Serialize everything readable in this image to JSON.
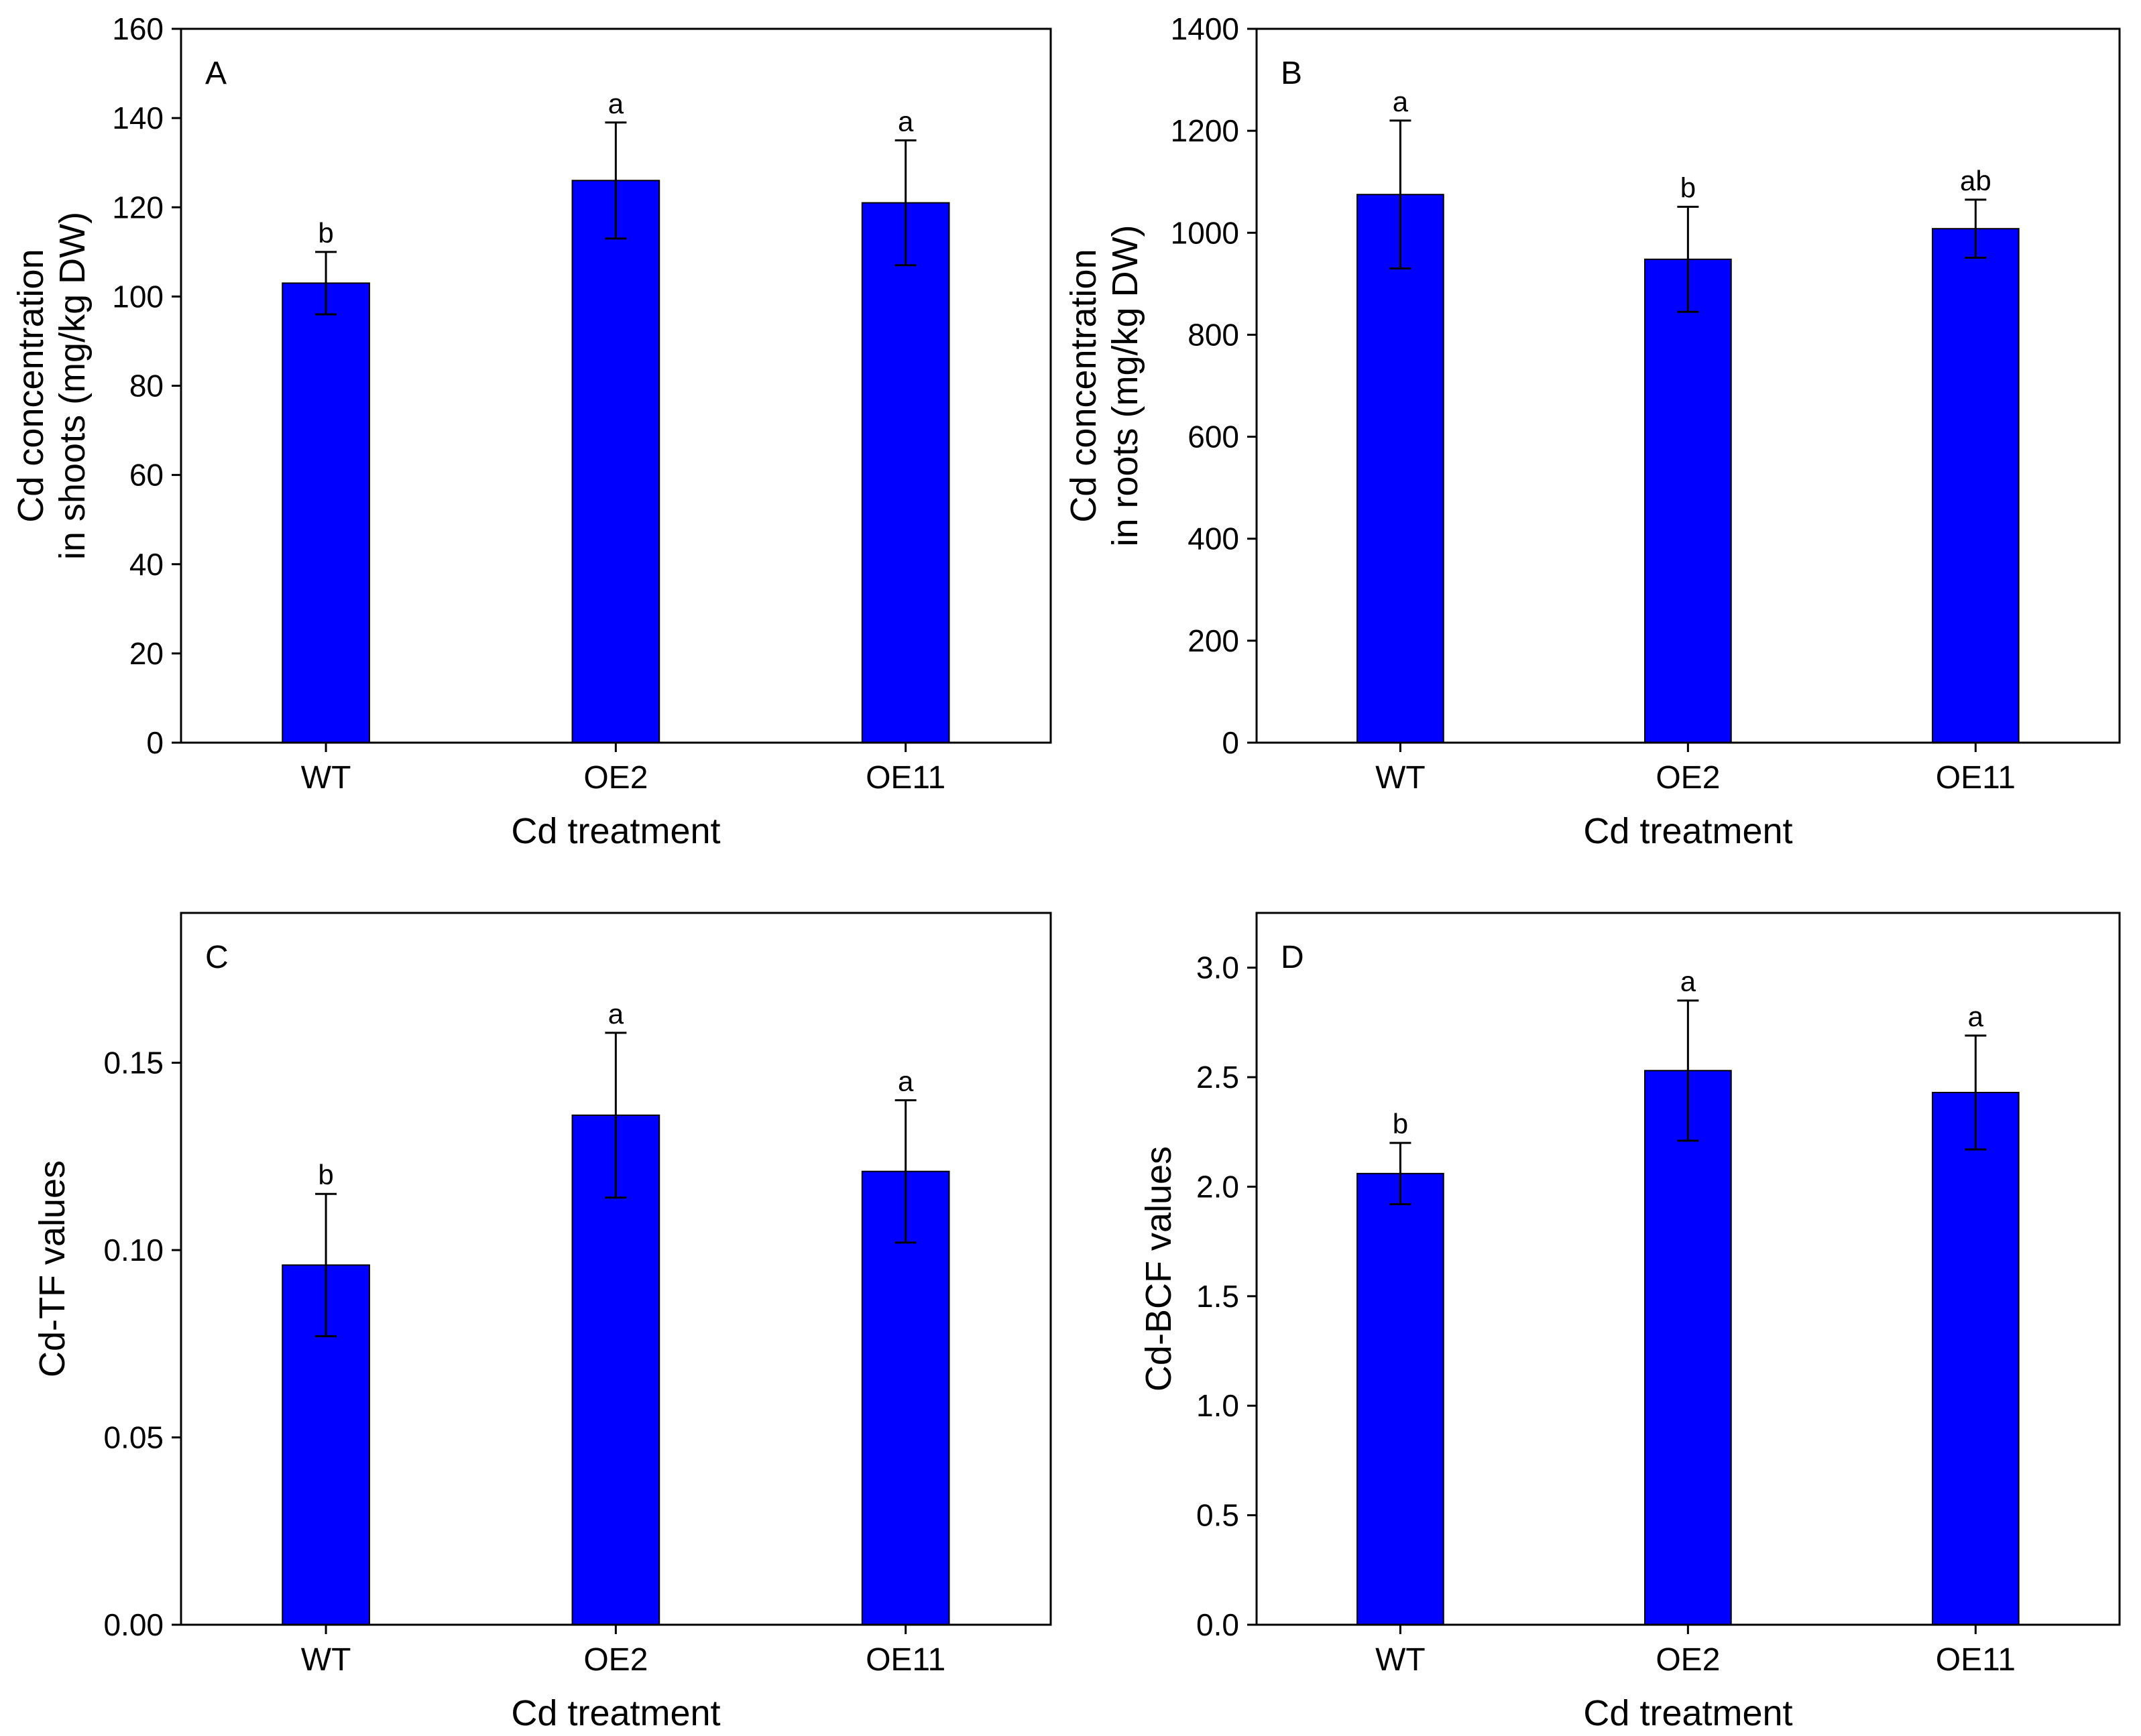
{
  "colors": {
    "bar_fill": "#0000ff",
    "bar_stroke": "#000000",
    "axis": "#000000",
    "background": "#ffffff"
  },
  "chart_data": [
    {
      "type": "bar",
      "panel_label": "A",
      "categories": [
        "WT",
        "OE2",
        "OE11"
      ],
      "values": [
        103,
        126,
        121
      ],
      "errors": [
        7,
        13,
        14
      ],
      "significance": [
        "b",
        "a",
        "a"
      ],
      "ylabel_lines": [
        "Cd concentration",
        "in shoots (mg/kg DW)"
      ],
      "xlabel": "Cd treatment",
      "ylim": [
        0,
        160
      ],
      "yticks": [
        0,
        20,
        40,
        60,
        80,
        100,
        120,
        140,
        160
      ],
      "ytick_labels": [
        "0",
        "20",
        "40",
        "60",
        "80",
        "100",
        "120",
        "140",
        "160"
      ]
    },
    {
      "type": "bar",
      "panel_label": "B",
      "categories": [
        "WT",
        "OE2",
        "OE11"
      ],
      "values": [
        1075,
        948,
        1008
      ],
      "errors": [
        145,
        103,
        57
      ],
      "significance": [
        "a",
        "b",
        "ab"
      ],
      "ylabel_lines": [
        "Cd concentration",
        "in roots (mg/kg DW)"
      ],
      "xlabel": "Cd treatment",
      "ylim": [
        0,
        1400
      ],
      "yticks": [
        0,
        200,
        400,
        600,
        800,
        1000,
        1200,
        1400
      ],
      "ytick_labels": [
        "0",
        "200",
        "400",
        "600",
        "800",
        "1000",
        "1200",
        "1400"
      ]
    },
    {
      "type": "bar",
      "panel_label": "C",
      "categories": [
        "WT",
        "OE2",
        "OE11"
      ],
      "values": [
        0.096,
        0.136,
        0.121
      ],
      "errors": [
        0.019,
        0.022,
        0.019
      ],
      "significance": [
        "b",
        "a",
        "a"
      ],
      "ylabel_lines": [
        "Cd-TF values"
      ],
      "xlabel": "Cd treatment",
      "ylim": [
        0,
        0.19
      ],
      "yticks": [
        0,
        0.05,
        0.1,
        0.15
      ],
      "ytick_labels": [
        "0.00",
        "0.05",
        "0.10",
        "0.15"
      ]
    },
    {
      "type": "bar",
      "panel_label": "D",
      "categories": [
        "WT",
        "OE2",
        "OE11"
      ],
      "values": [
        2.06,
        2.53,
        2.43
      ],
      "errors": [
        0.14,
        0.32,
        0.26
      ],
      "significance": [
        "b",
        "a",
        "a"
      ],
      "ylabel_lines": [
        "Cd-BCF values"
      ],
      "xlabel": "Cd treatment",
      "ylim": [
        0,
        3.25
      ],
      "yticks": [
        0,
        0.5,
        1.0,
        1.5,
        2.0,
        2.5,
        3.0
      ],
      "ytick_labels": [
        "0.0",
        "0.5",
        "1.0",
        "1.5",
        "2.0",
        "2.5",
        "3.0"
      ]
    }
  ]
}
